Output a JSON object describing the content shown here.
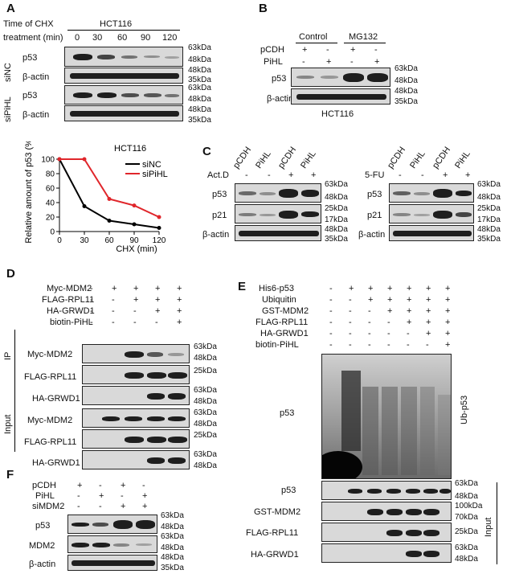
{
  "panels": {
    "A": "A",
    "B": "B",
    "C": "C",
    "D": "D",
    "E": "E",
    "F": "F"
  },
  "panelA": {
    "header1": "Time of CHX",
    "header2": "treatment (min)",
    "cell_line": "HCT116",
    "times": [
      "0",
      "30",
      "60",
      "90",
      "120"
    ],
    "group1": "siNC",
    "group2": "siPiHL",
    "rows": [
      "p53",
      "β-actin",
      "p53",
      "β-actin"
    ],
    "markers": [
      "63kDa",
      "48kDa",
      "48kDa",
      "35kDa",
      "63kDa",
      "48kDa",
      "48kDa",
      "35kDa"
    ]
  },
  "panelB": {
    "groups": [
      "Control",
      "MG132"
    ],
    "row_labels": [
      "pCDH",
      "PiHL"
    ],
    "pcdh": [
      "+",
      "-",
      "+",
      "-"
    ],
    "pihl": [
      "-",
      "+",
      "-",
      "+"
    ],
    "blots": [
      "p53",
      "β-actin"
    ],
    "markers": [
      "63kDa",
      "48kDa",
      "48kDa",
      "35kDa"
    ],
    "cell_line": "HCT116"
  },
  "panelC": {
    "lanes": [
      "pCDH",
      "PiHL",
      "pCDH",
      "PiHL"
    ],
    "treat1": "Act.D",
    "treat2": "5-FU",
    "signs": [
      "-",
      "-",
      "+",
      "+"
    ],
    "blots": [
      "p53",
      "p21",
      "β-actin"
    ],
    "markers": [
      "63kDa",
      "48kDa",
      "25kDa",
      "17kDa",
      "48kDa",
      "35kDa"
    ]
  },
  "panelD": {
    "rows": [
      "Myc-MDM2",
      "FLAG-RPL11",
      "HA-GRWD1",
      "biotin-PiHL"
    ],
    "signs": [
      [
        "-",
        "+",
        "+",
        "+",
        "+"
      ],
      [
        "-",
        "-",
        "+",
        "+",
        "+"
      ],
      [
        "-",
        "-",
        "-",
        "+",
        "+"
      ],
      [
        "-",
        "-",
        "-",
        "-",
        "+"
      ]
    ],
    "ip": "IP",
    "input": "Input",
    "blots": [
      "Myc-MDM2",
      "FLAG-RPL11",
      "HA-GRWD1",
      "Myc-MDM2",
      "FLAG-RPL11",
      "HA-GRWD1"
    ],
    "markers": [
      "63kDa",
      "48kDa",
      "25kDa",
      "63kDa",
      "48kDa",
      "63kDa",
      "48kDa",
      "25kDa",
      "63kDa",
      "48kDa"
    ]
  },
  "panelE": {
    "rows": [
      "His6-p53",
      "Ubiquitin",
      "GST-MDM2",
      "FLAG-RPL11",
      "HA-GRWD1",
      "biotin-PiHL"
    ],
    "signs": [
      [
        "-",
        "+",
        "+",
        "+",
        "+",
        "+",
        "+"
      ],
      [
        "-",
        "-",
        "+",
        "+",
        "+",
        "+",
        "+"
      ],
      [
        "-",
        "-",
        "-",
        "+",
        "+",
        "+",
        "+"
      ],
      [
        "-",
        "-",
        "-",
        "-",
        "+",
        "+",
        "+"
      ],
      [
        "-",
        "-",
        "-",
        "-",
        "-",
        "+",
        "+"
      ],
      [
        "-",
        "-",
        "-",
        "-",
        "-",
        "-",
        "+"
      ]
    ],
    "main_label": "p53",
    "side": "Ub-p53",
    "input": "Input",
    "blots": [
      "p53",
      "GST-MDM2",
      "FLAG-RPL11",
      "HA-GRWD1"
    ],
    "markers": [
      "63kDa",
      "48kDa",
      "100kDa",
      "70kDa",
      "25kDa",
      "63kDa",
      "48kDa"
    ]
  },
  "panelF": {
    "rows": [
      "pCDH",
      "PiHL",
      "siMDM2"
    ],
    "signs": [
      [
        "+",
        "-",
        "+",
        "-"
      ],
      [
        "-",
        "+",
        "-",
        "+"
      ],
      [
        "-",
        "-",
        "+",
        "+"
      ]
    ],
    "blots": [
      "p53",
      "MDM2",
      "β-actin"
    ],
    "markers": [
      "63kDa",
      "48kDa",
      "63kDa",
      "48kDa",
      "48kDa",
      "35kDa"
    ]
  },
  "chart_data": {
    "type": "line",
    "title": "HCT116",
    "xlabel": "CHX (min)",
    "ylabel": "Relative amount of p53 (%)",
    "x": [
      0,
      30,
      60,
      90,
      120
    ],
    "xlim": [
      0,
      120
    ],
    "ylim": [
      0,
      100
    ],
    "xticks": [
      "0",
      "30",
      "60",
      "90",
      "120"
    ],
    "yticks": [
      "0",
      "20",
      "40",
      "60",
      "80",
      "100"
    ],
    "series": [
      {
        "name": "siNC",
        "color": "#000000",
        "values": [
          100,
          35,
          15,
          10,
          5
        ]
      },
      {
        "name": "siPiHL",
        "color": "#e0262b",
        "values": [
          100,
          100,
          45,
          36,
          20
        ]
      }
    ],
    "legend": "top-right"
  }
}
